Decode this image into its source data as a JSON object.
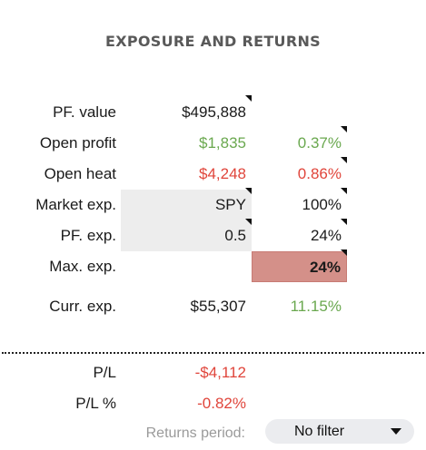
{
  "title": "EXPOSURE AND RETURNS",
  "rows": [
    {
      "label": "PF. value",
      "value": "$495,888",
      "pct": ""
    },
    {
      "label": "Open profit",
      "value": "$1,835",
      "pct": "0.37%"
    },
    {
      "label": "Open heat",
      "value": "$4,248",
      "pct": "0.86%"
    },
    {
      "label": "Market exp.",
      "value": "SPY",
      "pct": "100%"
    },
    {
      "label": "PF. exp.",
      "value": "0.5",
      "pct": "24%"
    },
    {
      "label": "Max. exp.",
      "value": "",
      "pct": "24%"
    },
    {
      "label": "Curr. exp.",
      "value": "$55,307",
      "pct": "11.15%"
    }
  ],
  "pl": {
    "label": "P/L",
    "value": "-$4,112",
    "pct_label": "P/L %",
    "pct_value": "-0.82%"
  },
  "returns": {
    "label": "Returns period:",
    "selected": "No filter"
  },
  "colors": {
    "positive": "#6aa84f",
    "negative": "#e0453b",
    "highlight": "#d49089",
    "title": "#595959"
  },
  "icons": {
    "comment_marker": "comment-indicator-icon",
    "dropdown": "caret-down-icon"
  }
}
